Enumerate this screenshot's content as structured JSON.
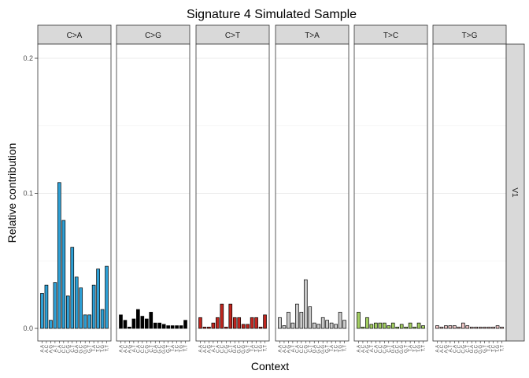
{
  "chart_data": {
    "type": "bar",
    "title": "Signature 4 Simulated Sample",
    "xlabel": "Context",
    "ylabel": "Relative contribution",
    "ylim": [
      0,
      0.21
    ],
    "y_ticks": [
      0.0,
      0.1,
      0.2
    ],
    "y_tick_labels": [
      "0.0",
      "0.1",
      "0.2"
    ],
    "grid": true,
    "row_strip_label": "V1",
    "contexts": [
      "A.A",
      "A.C",
      "A.G",
      "A.T",
      "C.A",
      "C.C",
      "C.G",
      "C.T",
      "G.A",
      "G.C",
      "G.G",
      "G.T",
      "T.A",
      "T.C",
      "T.G",
      "T.T"
    ],
    "facets": [
      {
        "label": "C>A",
        "color": "#2ea0d6",
        "values": [
          0.026,
          0.032,
          0.006,
          0.034,
          0.108,
          0.08,
          0.024,
          0.06,
          0.038,
          0.03,
          0.01,
          0.01,
          0.032,
          0.044,
          0.014,
          0.046
        ]
      },
      {
        "label": "C>G",
        "color": "#000000",
        "values": [
          0.01,
          0.006,
          0.001,
          0.007,
          0.014,
          0.009,
          0.007,
          0.012,
          0.004,
          0.004,
          0.003,
          0.002,
          0.002,
          0.002,
          0.002,
          0.006
        ]
      },
      {
        "label": "C>T",
        "color": "#c0261f",
        "values": [
          0.008,
          0.001,
          0.001,
          0.004,
          0.008,
          0.018,
          0.001,
          0.018,
          0.008,
          0.008,
          0.003,
          0.003,
          0.008,
          0.008,
          0.001,
          0.01
        ]
      },
      {
        "label": "T>A",
        "color": "#cbcbcb",
        "values": [
          0.008,
          0.002,
          0.012,
          0.004,
          0.018,
          0.012,
          0.036,
          0.016,
          0.004,
          0.003,
          0.008,
          0.006,
          0.004,
          0.003,
          0.012,
          0.006
        ]
      },
      {
        "label": "T>C",
        "color": "#a3cf62",
        "values": [
          0.012,
          0.001,
          0.008,
          0.003,
          0.004,
          0.004,
          0.004,
          0.002,
          0.004,
          0.001,
          0.003,
          0.001,
          0.004,
          0.001,
          0.004,
          0.002
        ]
      },
      {
        "label": "T>G",
        "color": "#e9c3c3",
        "values": [
          0.002,
          0.001,
          0.002,
          0.002,
          0.002,
          0.001,
          0.004,
          0.002,
          0.001,
          0.001,
          0.001,
          0.001,
          0.001,
          0.001,
          0.002,
          0.001
        ]
      }
    ]
  }
}
